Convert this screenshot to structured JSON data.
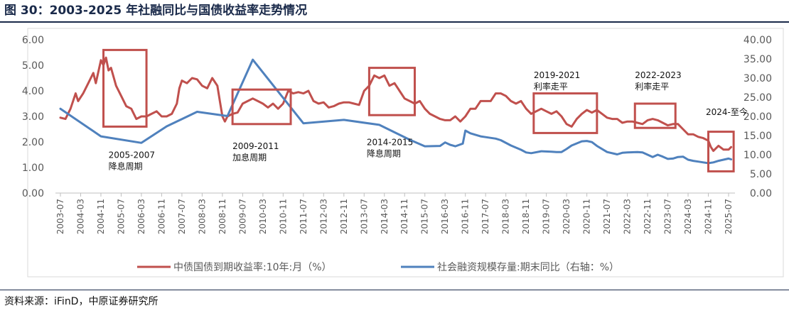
{
  "header": {
    "title": "图 30：2003-2025 年社融同比与国债收益率走势情况"
  },
  "footer": {
    "source": "资料来源：iFinD，中原证券研究所"
  },
  "colors": {
    "red": "#C0504D",
    "blue": "#4F81BD",
    "title": "#1a2a4a"
  },
  "chart_data": {
    "type": "line",
    "title": "",
    "grid": false,
    "legend_position": "bottom",
    "x_categories": [
      "2003-07",
      "2004-03",
      "2004-11",
      "2005-07",
      "2006-03",
      "2006-11",
      "2007-07",
      "2008-03",
      "2008-11",
      "2009-07",
      "2010-03",
      "2010-11",
      "2011-07",
      "2012-03",
      "2012-11",
      "2013-07",
      "2014-03",
      "2014-11",
      "2015-07",
      "2016-03",
      "2016-11",
      "2017-07",
      "2018-03",
      "2018-11",
      "2019-07",
      "2020-03",
      "2020-11",
      "2021-07",
      "2022-03",
      "2022-11",
      "2023-07",
      "2024-03",
      "2024-11",
      "2025-07"
    ],
    "y_left": {
      "min": 0,
      "max": 6,
      "ticks": [
        "0.00",
        "1.00",
        "2.00",
        "3.00",
        "4.00",
        "5.00",
        "6.00"
      ]
    },
    "y_right": {
      "min": 0,
      "max": 40,
      "ticks": [
        "0.00",
        "5.00",
        "10.00",
        "15.00",
        "20.00",
        "25.00",
        "30.00",
        "35.00",
        "40.00"
      ]
    },
    "series": [
      {
        "name": "中债国债到期收益率:10年:月（%）",
        "axis": "left",
        "color": "#C0504D",
        "points": [
          [
            "2003-07",
            2.95
          ],
          [
            "2003-09",
            2.9
          ],
          [
            "2003-11",
            3.3
          ],
          [
            "2004-01",
            3.9
          ],
          [
            "2004-02",
            3.6
          ],
          [
            "2004-04",
            3.9
          ],
          [
            "2004-06",
            4.3
          ],
          [
            "2004-08",
            4.7
          ],
          [
            "2004-09",
            4.3
          ],
          [
            "2004-11",
            5.2
          ],
          [
            "2004-12",
            5.0
          ],
          [
            "2005-01",
            5.3
          ],
          [
            "2005-02",
            4.8
          ],
          [
            "2005-03",
            4.9
          ],
          [
            "2005-05",
            4.2
          ],
          [
            "2005-07",
            3.8
          ],
          [
            "2005-09",
            3.4
          ],
          [
            "2005-11",
            3.3
          ],
          [
            "2006-01",
            2.9
          ],
          [
            "2006-03",
            3.0
          ],
          [
            "2006-05",
            3.0
          ],
          [
            "2006-07",
            3.1
          ],
          [
            "2006-09",
            3.2
          ],
          [
            "2006-10",
            3.1
          ],
          [
            "2006-11",
            3.0
          ],
          [
            "2007-01",
            3.0
          ],
          [
            "2007-03",
            3.1
          ],
          [
            "2007-05",
            3.5
          ],
          [
            "2007-06",
            4.1
          ],
          [
            "2007-07",
            4.4
          ],
          [
            "2007-09",
            4.3
          ],
          [
            "2007-11",
            4.5
          ],
          [
            "2008-01",
            4.45
          ],
          [
            "2008-03",
            4.2
          ],
          [
            "2008-05",
            4.1
          ],
          [
            "2008-07",
            4.5
          ],
          [
            "2008-09",
            4.2
          ],
          [
            "2008-10",
            3.6
          ],
          [
            "2008-11",
            3.0
          ],
          [
            "2008-12",
            2.8
          ],
          [
            "2009-01",
            3.0
          ],
          [
            "2009-03",
            3.1
          ],
          [
            "2009-05",
            3.15
          ],
          [
            "2009-07",
            3.5
          ],
          [
            "2009-09",
            3.6
          ],
          [
            "2009-11",
            3.7
          ],
          [
            "2010-01",
            3.6
          ],
          [
            "2010-03",
            3.5
          ],
          [
            "2010-05",
            3.35
          ],
          [
            "2010-07",
            3.5
          ],
          [
            "2010-09",
            3.3
          ],
          [
            "2010-11",
            3.5
          ],
          [
            "2011-01",
            4.0
          ],
          [
            "2011-03",
            3.9
          ],
          [
            "2011-05",
            3.95
          ],
          [
            "2011-07",
            3.9
          ],
          [
            "2011-09",
            4.0
          ],
          [
            "2011-11",
            3.6
          ],
          [
            "2012-01",
            3.5
          ],
          [
            "2012-03",
            3.55
          ],
          [
            "2012-05",
            3.35
          ],
          [
            "2012-07",
            3.4
          ],
          [
            "2012-09",
            3.5
          ],
          [
            "2012-11",
            3.55
          ],
          [
            "2013-01",
            3.55
          ],
          [
            "2013-03",
            3.5
          ],
          [
            "2013-05",
            3.45
          ],
          [
            "2013-07",
            4.0
          ],
          [
            "2013-09",
            4.2
          ],
          [
            "2013-11",
            4.6
          ],
          [
            "2014-01",
            4.5
          ],
          [
            "2014-03",
            4.6
          ],
          [
            "2014-05",
            4.2
          ],
          [
            "2014-07",
            4.3
          ],
          [
            "2014-09",
            4.0
          ],
          [
            "2014-11",
            3.7
          ],
          [
            "2015-01",
            3.6
          ],
          [
            "2015-03",
            3.5
          ],
          [
            "2015-05",
            3.6
          ],
          [
            "2015-07",
            3.3
          ],
          [
            "2015-09",
            3.1
          ],
          [
            "2015-11",
            3.0
          ],
          [
            "2016-01",
            2.9
          ],
          [
            "2016-03",
            2.85
          ],
          [
            "2016-05",
            2.85
          ],
          [
            "2016-07",
            3.0
          ],
          [
            "2016-09",
            2.8
          ],
          [
            "2016-11",
            3.0
          ],
          [
            "2017-01",
            3.3
          ],
          [
            "2017-03",
            3.3
          ],
          [
            "2017-05",
            3.6
          ],
          [
            "2017-07",
            3.6
          ],
          [
            "2017-09",
            3.6
          ],
          [
            "2017-11",
            3.9
          ],
          [
            "2018-01",
            3.9
          ],
          [
            "2018-03",
            3.8
          ],
          [
            "2018-05",
            3.6
          ],
          [
            "2018-07",
            3.5
          ],
          [
            "2018-09",
            3.6
          ],
          [
            "2018-11",
            3.3
          ],
          [
            "2019-01",
            3.1
          ],
          [
            "2019-03",
            3.2
          ],
          [
            "2019-05",
            3.3
          ],
          [
            "2019-07",
            3.2
          ],
          [
            "2019-09",
            3.1
          ],
          [
            "2019-11",
            3.2
          ],
          [
            "2020-01",
            3.0
          ],
          [
            "2020-03",
            2.7
          ],
          [
            "2020-05",
            2.6
          ],
          [
            "2020-07",
            2.9
          ],
          [
            "2020-09",
            3.1
          ],
          [
            "2020-11",
            3.25
          ],
          [
            "2021-01",
            3.15
          ],
          [
            "2021-03",
            3.25
          ],
          [
            "2021-05",
            3.1
          ],
          [
            "2021-07",
            2.95
          ],
          [
            "2021-09",
            2.9
          ],
          [
            "2021-11",
            2.9
          ],
          [
            "2022-01",
            2.75
          ],
          [
            "2022-03",
            2.8
          ],
          [
            "2022-05",
            2.8
          ],
          [
            "2022-07",
            2.75
          ],
          [
            "2022-09",
            2.7
          ],
          [
            "2022-11",
            2.85
          ],
          [
            "2023-01",
            2.9
          ],
          [
            "2023-03",
            2.85
          ],
          [
            "2023-05",
            2.75
          ],
          [
            "2023-07",
            2.65
          ],
          [
            "2023-09",
            2.7
          ],
          [
            "2023-11",
            2.7
          ],
          [
            "2024-01",
            2.5
          ],
          [
            "2024-03",
            2.3
          ],
          [
            "2024-05",
            2.3
          ],
          [
            "2024-07",
            2.2
          ],
          [
            "2024-09",
            2.15
          ],
          [
            "2024-11",
            2.05
          ],
          [
            "2024-12",
            1.8
          ],
          [
            "2025-01",
            1.65
          ],
          [
            "2025-03",
            1.85
          ],
          [
            "2025-05",
            1.7
          ],
          [
            "2025-07",
            1.7
          ],
          [
            "2025-08",
            1.8
          ]
        ]
      },
      {
        "name": "社会融资规模存量:期末同比（右轴：%）",
        "axis": "right",
        "color": "#4F81BD",
        "points": [
          [
            "2003-07",
            22
          ],
          [
            "2004-11",
            14.8
          ],
          [
            "2006-03",
            13.1
          ],
          [
            "2007-01",
            17.4
          ],
          [
            "2008-01",
            21.2
          ],
          [
            "2009-01",
            20.1
          ],
          [
            "2009-11",
            34.8
          ],
          [
            "2011-07",
            18.2
          ],
          [
            "2012-11",
            19.1
          ],
          [
            "2014-01",
            17.8
          ],
          [
            "2015-01",
            13.9
          ],
          [
            "2015-07",
            12.2
          ],
          [
            "2016-01",
            12.3
          ],
          [
            "2016-03",
            13.2
          ],
          [
            "2016-05",
            12.6
          ],
          [
            "2016-07",
            12.2
          ],
          [
            "2016-10",
            12.9
          ],
          [
            "2016-11",
            16.3
          ],
          [
            "2017-01",
            15.6
          ],
          [
            "2017-03",
            15.2
          ],
          [
            "2017-05",
            14.8
          ],
          [
            "2017-07",
            14.6
          ],
          [
            "2017-11",
            14.2
          ],
          [
            "2018-01",
            13.8
          ],
          [
            "2018-05",
            12.4
          ],
          [
            "2018-09",
            11.3
          ],
          [
            "2018-11",
            10.6
          ],
          [
            "2019-01",
            10.4
          ],
          [
            "2019-05",
            10.9
          ],
          [
            "2019-09",
            10.8
          ],
          [
            "2019-11",
            10.7
          ],
          [
            "2020-01",
            10.7
          ],
          [
            "2020-03",
            11.5
          ],
          [
            "2020-05",
            12.4
          ],
          [
            "2020-09",
            13.5
          ],
          [
            "2020-11",
            13.6
          ],
          [
            "2021-01",
            13.3
          ],
          [
            "2021-03",
            12.3
          ],
          [
            "2021-07",
            10.7
          ],
          [
            "2021-11",
            10.1
          ],
          [
            "2022-01",
            10.5
          ],
          [
            "2022-03",
            10.6
          ],
          [
            "2022-07",
            10.7
          ],
          [
            "2022-09",
            10.6
          ],
          [
            "2022-11",
            10.0
          ],
          [
            "2023-01",
            9.4
          ],
          [
            "2023-03",
            10.0
          ],
          [
            "2023-05",
            9.5
          ],
          [
            "2023-07",
            8.9
          ],
          [
            "2023-09",
            9.0
          ],
          [
            "2023-11",
            9.4
          ],
          [
            "2024-01",
            9.5
          ],
          [
            "2024-03",
            8.7
          ],
          [
            "2024-05",
            8.4
          ],
          [
            "2024-07",
            8.2
          ],
          [
            "2024-09",
            8.0
          ],
          [
            "2024-11",
            7.8
          ],
          [
            "2025-01",
            8.0
          ],
          [
            "2025-03",
            8.4
          ],
          [
            "2025-05",
            8.7
          ],
          [
            "2025-07",
            9.0
          ],
          [
            "2025-08",
            8.8
          ]
        ]
      }
    ],
    "annotations": [
      {
        "id": "box1",
        "start": "2004-12",
        "end": "2006-05",
        "ymin": 2.6,
        "ymax": 5.6,
        "labels": [
          "2005-2007",
          "降息周期"
        ],
        "label_anchor": "2005-02",
        "label_y": 1.38
      },
      {
        "id": "box2",
        "start": "2009-03",
        "end": "2011-02",
        "ymin": 2.7,
        "ymax": 4.05,
        "labels": [
          "2009-2011",
          "加息周期"
        ],
        "label_anchor": "2009-03",
        "label_y": 1.72
      },
      {
        "id": "box3",
        "start": "2013-09",
        "end": "2015-03",
        "ymin": 3.05,
        "ymax": 4.9,
        "labels": [
          "2014-2015",
          "降息周期"
        ],
        "label_anchor": "2013-08",
        "label_y": 1.88
      },
      {
        "id": "box4",
        "start": "2019-02",
        "end": "2021-03",
        "ymin": 2.35,
        "ymax": 3.9,
        "labels": [
          "2019-2021",
          "利率走平"
        ],
        "label_anchor": "2019-02",
        "label_y": 4.5
      },
      {
        "id": "box5",
        "start": "2022-06",
        "end": "2023-10",
        "ymin": 2.55,
        "ymax": 3.5,
        "labels": [
          "2022-2023",
          "利率走平"
        ],
        "label_anchor": "2022-06",
        "label_y": 4.5
      },
      {
        "id": "box6",
        "start": "2024-11",
        "end": "2025-09",
        "ymin": 0.85,
        "ymax": 2.4,
        "labels": [
          "2024-至今"
        ],
        "label_anchor": "2024-10",
        "label_y": 3.06
      }
    ]
  }
}
